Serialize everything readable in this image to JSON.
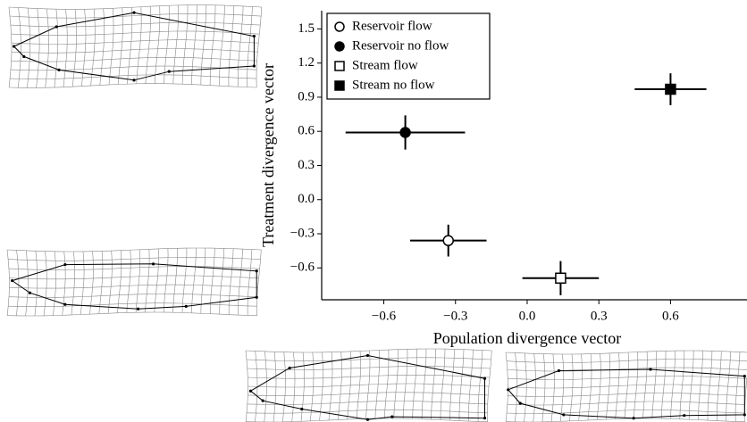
{
  "chart_data": {
    "type": "scatter",
    "xlabel": "Population divergence vector",
    "ylabel": "Treatment divergence vector",
    "xlim": [
      -0.86,
      0.92
    ],
    "ylim": [
      -0.88,
      1.66
    ],
    "xticks": [
      {
        "value": -0.6,
        "label": "−0.6"
      },
      {
        "value": -0.3,
        "label": "−0.3"
      },
      {
        "value": 0,
        "label": "0.0"
      },
      0.3,
      0.6
    ],
    "yticks": [
      {
        "value": -0.6,
        "label": "−0.6"
      },
      {
        "value": -0.3,
        "label": "−0.3"
      },
      {
        "value": 0,
        "label": "0.0"
      },
      0.3,
      0.6,
      0.9,
      1.2,
      1.5
    ],
    "legend": "upper left",
    "series": [
      {
        "name": "Reservoir flow",
        "marker": "circle",
        "filled": false,
        "color": "#000000",
        "x": [
          -0.33
        ],
        "y": [
          -0.36
        ],
        "xerr": [
          0.16
        ],
        "yerr": [
          0.14
        ]
      },
      {
        "name": "Reservoir no flow",
        "marker": "circle",
        "filled": true,
        "color": "#000000",
        "x": [
          -0.51
        ],
        "y": [
          0.59
        ],
        "xerr": [
          0.25
        ],
        "yerr": [
          0.15
        ]
      },
      {
        "name": "Stream flow",
        "marker": "square",
        "filled": false,
        "color": "#000000",
        "x": [
          0.14
        ],
        "y": [
          -0.69
        ],
        "xerr": [
          0.16
        ],
        "yerr": [
          0.15
        ]
      },
      {
        "name": "Stream no flow",
        "marker": "square",
        "filled": true,
        "color": "#000000",
        "x": [
          0.6
        ],
        "y": [
          0.97
        ],
        "xerr": [
          0.15
        ],
        "yerr": [
          0.14
        ]
      }
    ]
  }
}
